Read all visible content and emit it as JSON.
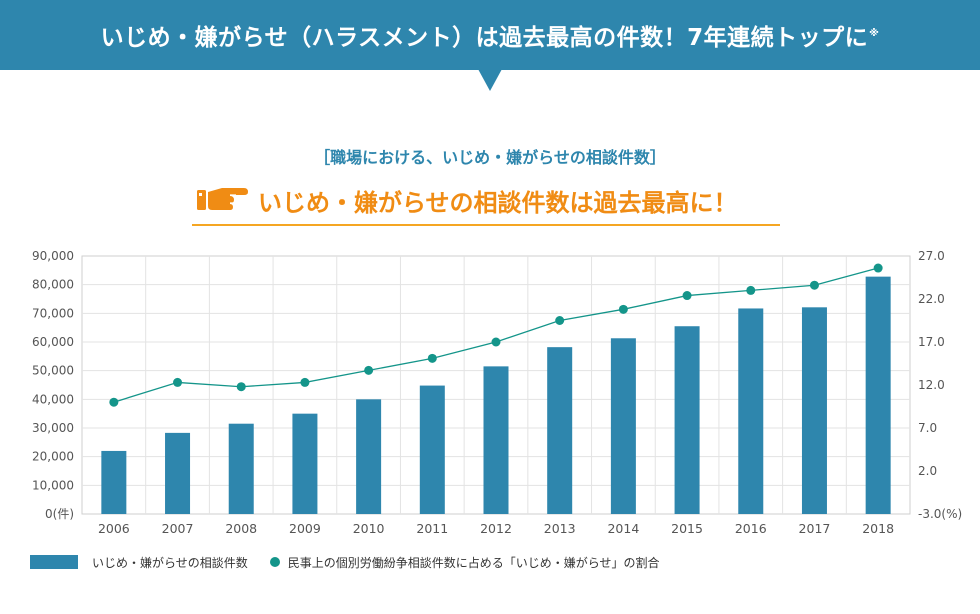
{
  "header": {
    "title": "いじめ・嫌がらせ（ハラスメント）は過去最高の件数！7年連続トップに",
    "note_mark": "※"
  },
  "subtitle": "［職場における、いじめ・嫌がらせの相談件数］",
  "headline": "いじめ・嫌がらせの相談件数は過去最高に！",
  "colors": {
    "brand": "#2e86ad",
    "accent": "#f08c14",
    "line": "#14958a"
  },
  "icons": {
    "headline": "pointing-hand-icon"
  },
  "chart_data": {
    "type": "bar",
    "categories": [
      "2006",
      "2007",
      "2008",
      "2009",
      "2010",
      "2011",
      "2012",
      "2013",
      "2014",
      "2015",
      "2016",
      "2017",
      "2018"
    ],
    "series": [
      {
        "name": "いじめ・嫌がらせの相談件数",
        "type": "bar",
        "axis": "left",
        "values": [
          22000,
          28300,
          31500,
          35000,
          40000,
          44800,
          51500,
          58200,
          61300,
          65500,
          71700,
          72100,
          82800
        ]
      },
      {
        "name": "民事上の個別労働紛争相談件数に占める「いじめ・嫌がらせ」の割合",
        "type": "line",
        "axis": "right",
        "values": [
          10.0,
          12.3,
          11.8,
          12.3,
          13.7,
          15.1,
          17.0,
          19.5,
          20.8,
          22.4,
          23.0,
          23.6,
          25.6
        ]
      }
    ],
    "y_left": {
      "min": 0,
      "max": 90000,
      "step": 10000,
      "ticks": [
        "0(件)",
        "10,000",
        "20,000",
        "30,000",
        "40,000",
        "50,000",
        "60,000",
        "70,000",
        "80,000",
        "90,000"
      ]
    },
    "y_right": {
      "min": -3.0,
      "max": 27.0,
      "ticks": [
        "-3.0(%)",
        "2.0",
        "7.0",
        "12.0",
        "17.0",
        "22.0",
        "27.0"
      ]
    },
    "grid": true,
    "legend_position": "bottom-left"
  }
}
